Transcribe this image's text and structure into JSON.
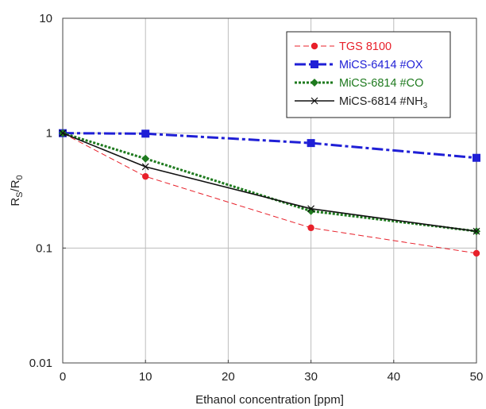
{
  "chart_data": {
    "type": "line",
    "title": "",
    "xlabel": "Ethanol concentration  [ppm]",
    "ylabel": {
      "main": "R",
      "sub1": "S",
      "sep": "/R",
      "sub2": "0"
    },
    "xlim": [
      0,
      50
    ],
    "ylim": [
      0.01,
      10
    ],
    "y_scale": "log",
    "grid": true,
    "legend_position": "top-right",
    "x_ticks": [
      "0",
      "10",
      "20",
      "30",
      "40",
      "50"
    ],
    "y_ticks": [
      "0.01",
      "0.1",
      "1",
      "10"
    ],
    "series": [
      {
        "name": "TGS 8100",
        "legend_parts": {
          "main": "TGS 8100",
          "sub": ""
        },
        "color": "#e8202a",
        "line": "dashed-thin",
        "marker": "circle",
        "x": [
          0,
          10,
          30,
          50
        ],
        "y": [
          1.0,
          0.42,
          0.15,
          0.09
        ]
      },
      {
        "name": "MiCS-6414 #OX",
        "legend_parts": {
          "main": "MiCS-6414 #OX",
          "sub": ""
        },
        "color": "#1f1fd6",
        "line": "dash-dot-thick",
        "marker": "square",
        "x": [
          0,
          10,
          30,
          50
        ],
        "y": [
          1.0,
          0.99,
          0.82,
          0.61
        ]
      },
      {
        "name": "MiCS-6814 #CO",
        "legend_parts": {
          "main": "MiCS-6814 #CO",
          "sub": ""
        },
        "color": "#1e7a1e",
        "line": "dotted-thick",
        "marker": "diamond",
        "x": [
          0,
          10,
          30,
          50
        ],
        "y": [
          1.0,
          0.6,
          0.21,
          0.14
        ]
      },
      {
        "name": "MiCS-6814 #NH3",
        "legend_parts": {
          "main": "MiCS-6814 #NH",
          "sub": "3"
        },
        "color": "#111111",
        "line": "solid",
        "marker": "x",
        "x": [
          0,
          10,
          30,
          50
        ],
        "y": [
          1.0,
          0.51,
          0.22,
          0.14
        ]
      }
    ]
  }
}
